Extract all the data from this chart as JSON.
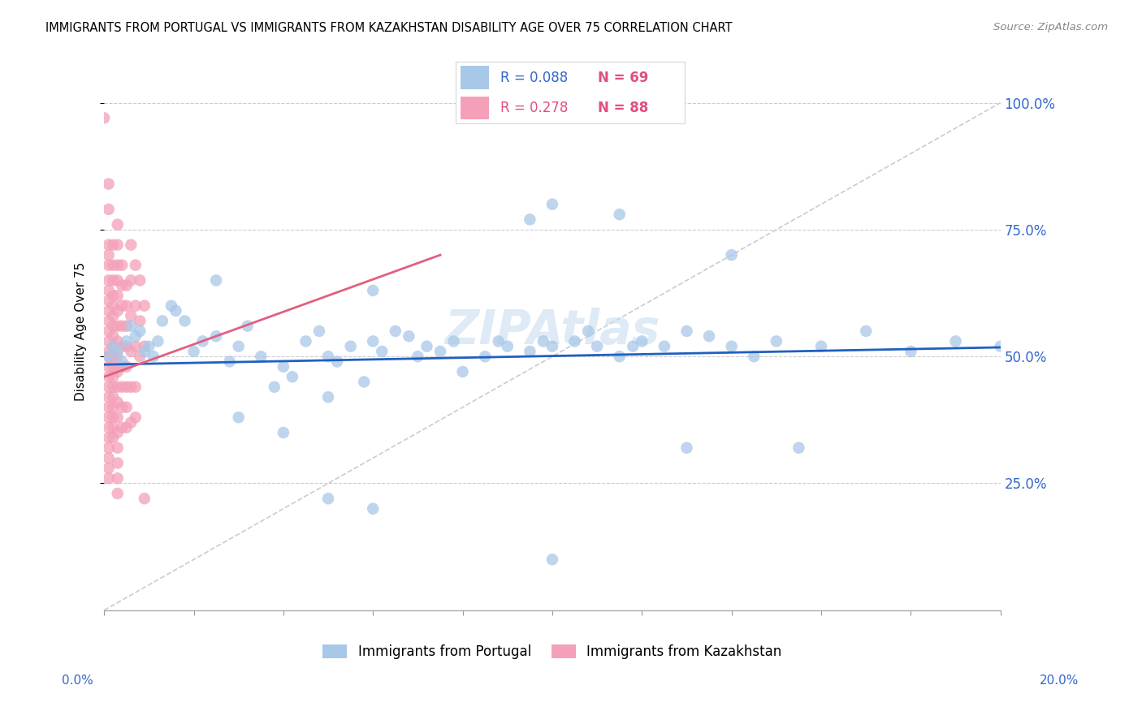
{
  "title": "IMMIGRANTS FROM PORTUGAL VS IMMIGRANTS FROM KAZAKHSTAN DISABILITY AGE OVER 75 CORRELATION CHART",
  "source": "Source: ZipAtlas.com",
  "ylabel": "Disability Age Over 75",
  "ytick_labels": [
    "100.0%",
    "75.0%",
    "50.0%",
    "25.0%"
  ],
  "ytick_values": [
    1.0,
    0.75,
    0.5,
    0.25
  ],
  "xlim": [
    0.0,
    0.2
  ],
  "ylim": [
    0.0,
    1.1
  ],
  "watermark": "ZIPAtlas",
  "portugal_color": "#a8c8e8",
  "kazakhstan_color": "#f4a0b8",
  "portugal_trendline_color": "#2060c0",
  "kazakhstan_trendline_color": "#e06080",
  "gridline_color": "#cccccc",
  "portugal_scatter": [
    [
      0.001,
      0.5
    ],
    [
      0.002,
      0.52
    ],
    [
      0.003,
      0.51
    ],
    [
      0.004,
      0.49
    ],
    [
      0.005,
      0.53
    ],
    [
      0.006,
      0.56
    ],
    [
      0.007,
      0.54
    ],
    [
      0.008,
      0.55
    ],
    [
      0.009,
      0.51
    ],
    [
      0.01,
      0.52
    ],
    [
      0.011,
      0.5
    ],
    [
      0.012,
      0.53
    ],
    [
      0.013,
      0.57
    ],
    [
      0.015,
      0.6
    ],
    [
      0.016,
      0.59
    ],
    [
      0.018,
      0.57
    ],
    [
      0.02,
      0.51
    ],
    [
      0.022,
      0.53
    ],
    [
      0.025,
      0.54
    ],
    [
      0.028,
      0.49
    ],
    [
      0.03,
      0.52
    ],
    [
      0.032,
      0.56
    ],
    [
      0.035,
      0.5
    ],
    [
      0.038,
      0.44
    ],
    [
      0.04,
      0.48
    ],
    [
      0.042,
      0.46
    ],
    [
      0.045,
      0.53
    ],
    [
      0.048,
      0.55
    ],
    [
      0.05,
      0.5
    ],
    [
      0.052,
      0.49
    ],
    [
      0.055,
      0.52
    ],
    [
      0.058,
      0.45
    ],
    [
      0.06,
      0.53
    ],
    [
      0.062,
      0.51
    ],
    [
      0.065,
      0.55
    ],
    [
      0.068,
      0.54
    ],
    [
      0.07,
      0.5
    ],
    [
      0.072,
      0.52
    ],
    [
      0.075,
      0.51
    ],
    [
      0.078,
      0.53
    ],
    [
      0.08,
      0.47
    ],
    [
      0.085,
      0.5
    ],
    [
      0.088,
      0.53
    ],
    [
      0.09,
      0.52
    ],
    [
      0.095,
      0.51
    ],
    [
      0.098,
      0.53
    ],
    [
      0.1,
      0.52
    ],
    [
      0.105,
      0.53
    ],
    [
      0.108,
      0.55
    ],
    [
      0.11,
      0.52
    ],
    [
      0.115,
      0.5
    ],
    [
      0.118,
      0.52
    ],
    [
      0.12,
      0.53
    ],
    [
      0.125,
      0.52
    ],
    [
      0.13,
      0.55
    ],
    [
      0.135,
      0.54
    ],
    [
      0.14,
      0.52
    ],
    [
      0.145,
      0.5
    ],
    [
      0.15,
      0.53
    ],
    [
      0.06,
      0.63
    ],
    [
      0.025,
      0.65
    ],
    [
      0.03,
      0.38
    ],
    [
      0.04,
      0.35
    ],
    [
      0.05,
      0.42
    ],
    [
      0.05,
      0.22
    ],
    [
      0.06,
      0.2
    ],
    [
      0.095,
      0.77
    ],
    [
      0.115,
      0.78
    ],
    [
      0.13,
      0.32
    ],
    [
      0.155,
      0.32
    ],
    [
      0.1,
      0.8
    ],
    [
      0.14,
      0.7
    ],
    [
      0.1,
      0.1
    ],
    [
      0.16,
      0.52
    ],
    [
      0.17,
      0.55
    ],
    [
      0.18,
      0.51
    ],
    [
      0.19,
      0.53
    ],
    [
      0.2,
      0.52
    ]
  ],
  "kazakhstan_scatter": [
    [
      0.0,
      0.97
    ],
    [
      0.001,
      0.84
    ],
    [
      0.001,
      0.79
    ],
    [
      0.001,
      0.72
    ],
    [
      0.001,
      0.7
    ],
    [
      0.001,
      0.68
    ],
    [
      0.001,
      0.65
    ],
    [
      0.001,
      0.63
    ],
    [
      0.001,
      0.61
    ],
    [
      0.001,
      0.59
    ],
    [
      0.001,
      0.57
    ],
    [
      0.001,
      0.55
    ],
    [
      0.001,
      0.53
    ],
    [
      0.001,
      0.51
    ],
    [
      0.001,
      0.5
    ],
    [
      0.001,
      0.48
    ],
    [
      0.001,
      0.46
    ],
    [
      0.001,
      0.44
    ],
    [
      0.001,
      0.42
    ],
    [
      0.001,
      0.4
    ],
    [
      0.001,
      0.38
    ],
    [
      0.001,
      0.36
    ],
    [
      0.001,
      0.34
    ],
    [
      0.001,
      0.32
    ],
    [
      0.001,
      0.3
    ],
    [
      0.001,
      0.28
    ],
    [
      0.001,
      0.26
    ],
    [
      0.002,
      0.72
    ],
    [
      0.002,
      0.68
    ],
    [
      0.002,
      0.65
    ],
    [
      0.002,
      0.62
    ],
    [
      0.002,
      0.6
    ],
    [
      0.002,
      0.58
    ],
    [
      0.002,
      0.56
    ],
    [
      0.002,
      0.54
    ],
    [
      0.002,
      0.52
    ],
    [
      0.002,
      0.5
    ],
    [
      0.002,
      0.48
    ],
    [
      0.002,
      0.46
    ],
    [
      0.002,
      0.44
    ],
    [
      0.002,
      0.42
    ],
    [
      0.002,
      0.4
    ],
    [
      0.002,
      0.38
    ],
    [
      0.002,
      0.36
    ],
    [
      0.002,
      0.34
    ],
    [
      0.003,
      0.76
    ],
    [
      0.003,
      0.72
    ],
    [
      0.003,
      0.68
    ],
    [
      0.003,
      0.65
    ],
    [
      0.003,
      0.62
    ],
    [
      0.003,
      0.59
    ],
    [
      0.003,
      0.56
    ],
    [
      0.003,
      0.53
    ],
    [
      0.003,
      0.5
    ],
    [
      0.003,
      0.47
    ],
    [
      0.003,
      0.44
    ],
    [
      0.003,
      0.41
    ],
    [
      0.003,
      0.38
    ],
    [
      0.003,
      0.35
    ],
    [
      0.003,
      0.32
    ],
    [
      0.003,
      0.29
    ],
    [
      0.003,
      0.26
    ],
    [
      0.003,
      0.23
    ],
    [
      0.004,
      0.68
    ],
    [
      0.004,
      0.64
    ],
    [
      0.004,
      0.6
    ],
    [
      0.004,
      0.56
    ],
    [
      0.004,
      0.52
    ],
    [
      0.004,
      0.48
    ],
    [
      0.004,
      0.44
    ],
    [
      0.004,
      0.4
    ],
    [
      0.004,
      0.36
    ],
    [
      0.005,
      0.64
    ],
    [
      0.005,
      0.6
    ],
    [
      0.005,
      0.56
    ],
    [
      0.005,
      0.52
    ],
    [
      0.005,
      0.48
    ],
    [
      0.005,
      0.44
    ],
    [
      0.005,
      0.4
    ],
    [
      0.005,
      0.36
    ],
    [
      0.006,
      0.72
    ],
    [
      0.006,
      0.65
    ],
    [
      0.006,
      0.58
    ],
    [
      0.006,
      0.51
    ],
    [
      0.006,
      0.44
    ],
    [
      0.006,
      0.37
    ],
    [
      0.007,
      0.68
    ],
    [
      0.007,
      0.6
    ],
    [
      0.007,
      0.52
    ],
    [
      0.007,
      0.44
    ],
    [
      0.007,
      0.38
    ],
    [
      0.008,
      0.65
    ],
    [
      0.008,
      0.57
    ],
    [
      0.008,
      0.5
    ],
    [
      0.009,
      0.6
    ],
    [
      0.009,
      0.52
    ],
    [
      0.009,
      0.22
    ]
  ],
  "portugal_trend_x": [
    0.0,
    0.2
  ],
  "portugal_trend_y": [
    0.484,
    0.518
  ],
  "kazakhstan_trend_x": [
    0.0,
    0.075
  ],
  "kazakhstan_trend_y": [
    0.46,
    0.7
  ]
}
